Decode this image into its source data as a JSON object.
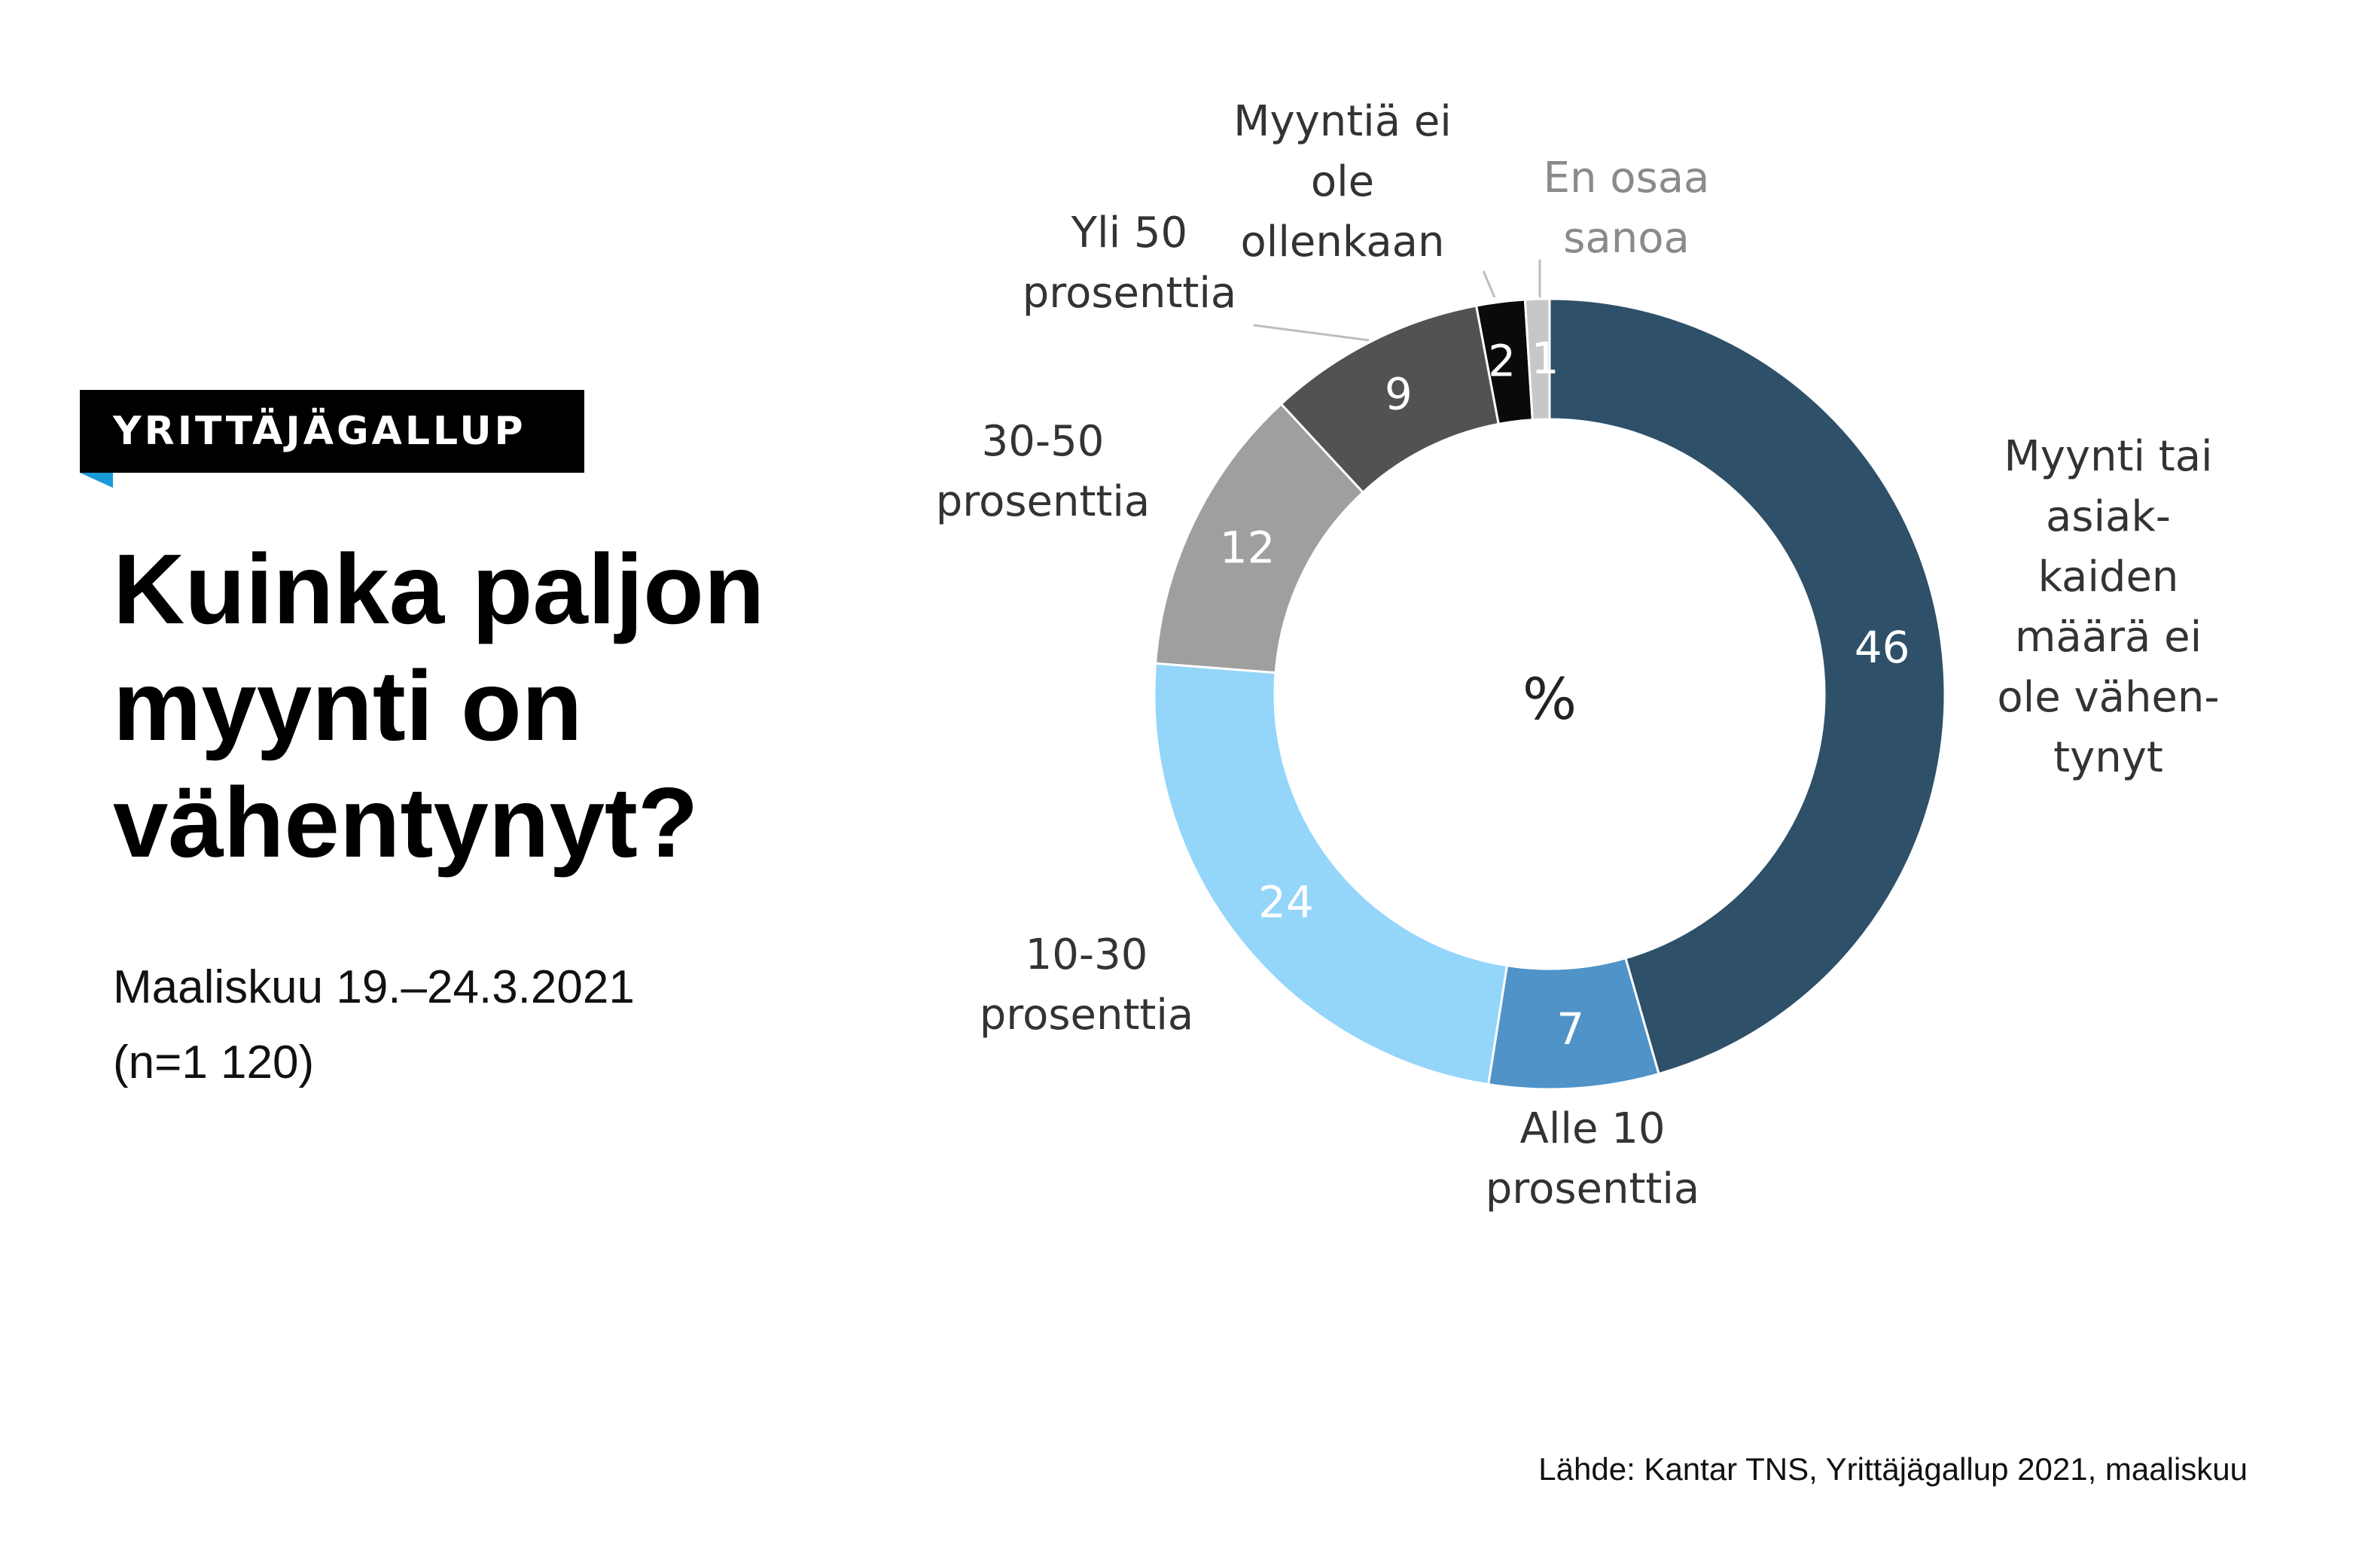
{
  "header": {
    "tag": "YRITTÄJÄGALLUP",
    "title_lines": [
      "Kuinka paljon",
      "myynti on",
      "vähentynyt?"
    ],
    "date": "Maaliskuu 19.–24.3.2021",
    "sample": "(n=1 120)"
  },
  "source": "Lähde: Kantar TNS, Yrittäjägallup 2021, maaliskuu",
  "chart_data": {
    "type": "pie",
    "style": "donut",
    "center_label": "%",
    "segments": [
      {
        "label_lines": [
          "Myynti tai",
          "asiak-",
          "kaiden",
          "määrä ei",
          "ole vähen-",
          "tynyt"
        ],
        "value": 46,
        "color": "#2e5069",
        "value_color": "#ffffff",
        "label_color": "#333333"
      },
      {
        "label_lines": [
          "Alle 10",
          "prosenttia"
        ],
        "value": 7,
        "color": "#4f93c8",
        "value_color": "#ffffff",
        "label_color": "#333333"
      },
      {
        "label_lines": [
          "10-30",
          "prosenttia"
        ],
        "value": 24,
        "color": "#94d5fa",
        "value_color": "#ffffff",
        "label_color": "#333333"
      },
      {
        "label_lines": [
          "30-50",
          "prosenttia"
        ],
        "value": 12,
        "color": "#9f9f9f",
        "value_color": "#ffffff",
        "label_color": "#333333"
      },
      {
        "label_lines": [
          "Yli 50",
          "prosenttia"
        ],
        "value": 9,
        "color": "#525252",
        "value_color": "#ffffff",
        "label_color": "#333333"
      },
      {
        "label_lines": [
          "Myyntiä ei",
          "ole",
          "ollenkaan"
        ],
        "value": 2,
        "color": "#0a0a0a",
        "value_color": "#ffffff",
        "label_color": "#333333"
      },
      {
        "label_lines": [
          "En osaa",
          "sanoa"
        ],
        "value": 1,
        "color": "#c7c7c7",
        "value_color": "#ffffff",
        "label_color": "#8a8a8a"
      }
    ]
  }
}
